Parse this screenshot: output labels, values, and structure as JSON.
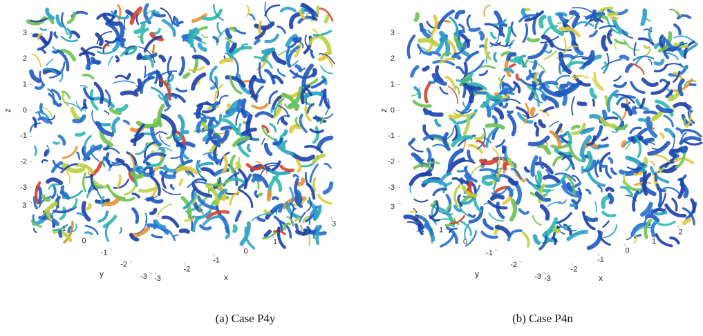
{
  "panels": [
    {
      "caption": "(a) Case P4y",
      "z_label": "z",
      "y_label": "y",
      "x_label": "x",
      "zticks": [
        3,
        2,
        1,
        0,
        -1,
        -2,
        -3
      ],
      "yticks": [
        3,
        2,
        1,
        0,
        -1,
        -2,
        -3
      ],
      "xticks": [
        -3,
        -2,
        -1,
        0,
        1,
        2,
        3
      ]
    },
    {
      "caption": "(b) Case P4n",
      "z_label": "z",
      "y_label": "y",
      "x_label": "x",
      "zticks": [
        3,
        2,
        1,
        0,
        -1,
        -2,
        -3
      ],
      "yticks": [
        3,
        2,
        1,
        0,
        -1,
        -2,
        -3
      ],
      "xticks": [
        -3,
        -2,
        -1,
        0,
        1,
        2
      ]
    }
  ]
}
